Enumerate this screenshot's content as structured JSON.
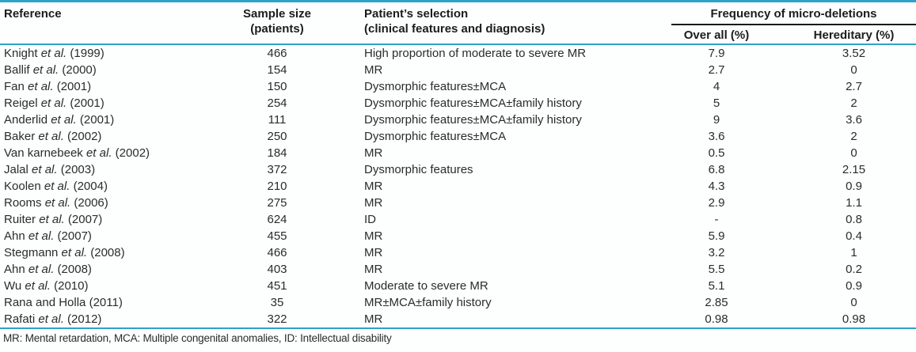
{
  "colors": {
    "accent_line": "#2ea3c6",
    "subheader_line": "#14181c",
    "text": "#2b2b2b"
  },
  "table": {
    "header": {
      "reference": "Reference",
      "sample_size_line1": "Sample size",
      "sample_size_line2": "(patients)",
      "selection_line1": "Patient’s selection",
      "selection_line2": "(clinical features and diagnosis)",
      "frequency_group": "Frequency of micro-deletions",
      "overall": "Over all (%)",
      "hereditary": "Hereditary (%)"
    },
    "rows": [
      {
        "reference": "Knight et al. (1999)",
        "sample_size": "466",
        "selection": "High proportion of moderate to severe MR",
        "overall": "7.9",
        "hereditary": "3.52"
      },
      {
        "reference": "Ballif et al. (2000)",
        "sample_size": "154",
        "selection": "MR",
        "overall": "2.7",
        "hereditary": "0"
      },
      {
        "reference": "Fan et al. (2001)",
        "sample_size": "150",
        "selection": "Dysmorphic features±MCA",
        "overall": "4",
        "hereditary": "2.7"
      },
      {
        "reference": "Reigel et al. (2001)",
        "sample_size": "254",
        "selection": "Dysmorphic features±MCA±family history",
        "overall": "5",
        "hereditary": "2"
      },
      {
        "reference": "Anderlid et al. (2001)",
        "sample_size": "111",
        "selection": "Dysmorphic features±MCA±family history",
        "overall": "9",
        "hereditary": "3.6"
      },
      {
        "reference": "Baker et al. (2002)",
        "sample_size": "250",
        "selection": "Dysmorphic features±MCA",
        "overall": "3.6",
        "hereditary": "2"
      },
      {
        "reference": "Van karnebeek et al. (2002)",
        "sample_size": "184",
        "selection": "MR",
        "overall": "0.5",
        "hereditary": "0"
      },
      {
        "reference": "Jalal et al. (2003)",
        "sample_size": "372",
        "selection": "Dysmorphic features",
        "overall": "6.8",
        "hereditary": "2.15"
      },
      {
        "reference": "Koolen et al. (2004)",
        "sample_size": "210",
        "selection": "MR",
        "overall": "4.3",
        "hereditary": "0.9"
      },
      {
        "reference": "Rooms et al. (2006)",
        "sample_size": "275",
        "selection": "MR",
        "overall": "2.9",
        "hereditary": "1.1"
      },
      {
        "reference": "Ruiter et al. (2007)",
        "sample_size": "624",
        "selection": "ID",
        "overall": "-",
        "hereditary": "0.8"
      },
      {
        "reference": "Ahn et al. (2007)",
        "sample_size": "455",
        "selection": "MR",
        "overall": "5.9",
        "hereditary": "0.4"
      },
      {
        "reference": "Stegmann et al. (2008)",
        "sample_size": "466",
        "selection": "MR",
        "overall": "3.2",
        "hereditary": "1"
      },
      {
        "reference": "Ahn et al. (2008)",
        "sample_size": "403",
        "selection": "MR",
        "overall": "5.5",
        "hereditary": "0.2"
      },
      {
        "reference": "Wu et al. (2010)",
        "sample_size": "451",
        "selection": "Moderate to severe MR",
        "overall": "5.1",
        "hereditary": "0.9"
      },
      {
        "reference": "Rana and Holla (2011)",
        "sample_size": "35",
        "selection": "MR±MCA±family history",
        "overall": "2.85",
        "hereditary": "0"
      },
      {
        "reference": "Rafati et al. (2012)",
        "sample_size": "322",
        "selection": "MR",
        "overall": "0.98",
        "hereditary": "0.98"
      }
    ],
    "footnote": "MR: Mental retardation, MCA: Multiple congenital anomalies, ID: Intellectual disability"
  }
}
